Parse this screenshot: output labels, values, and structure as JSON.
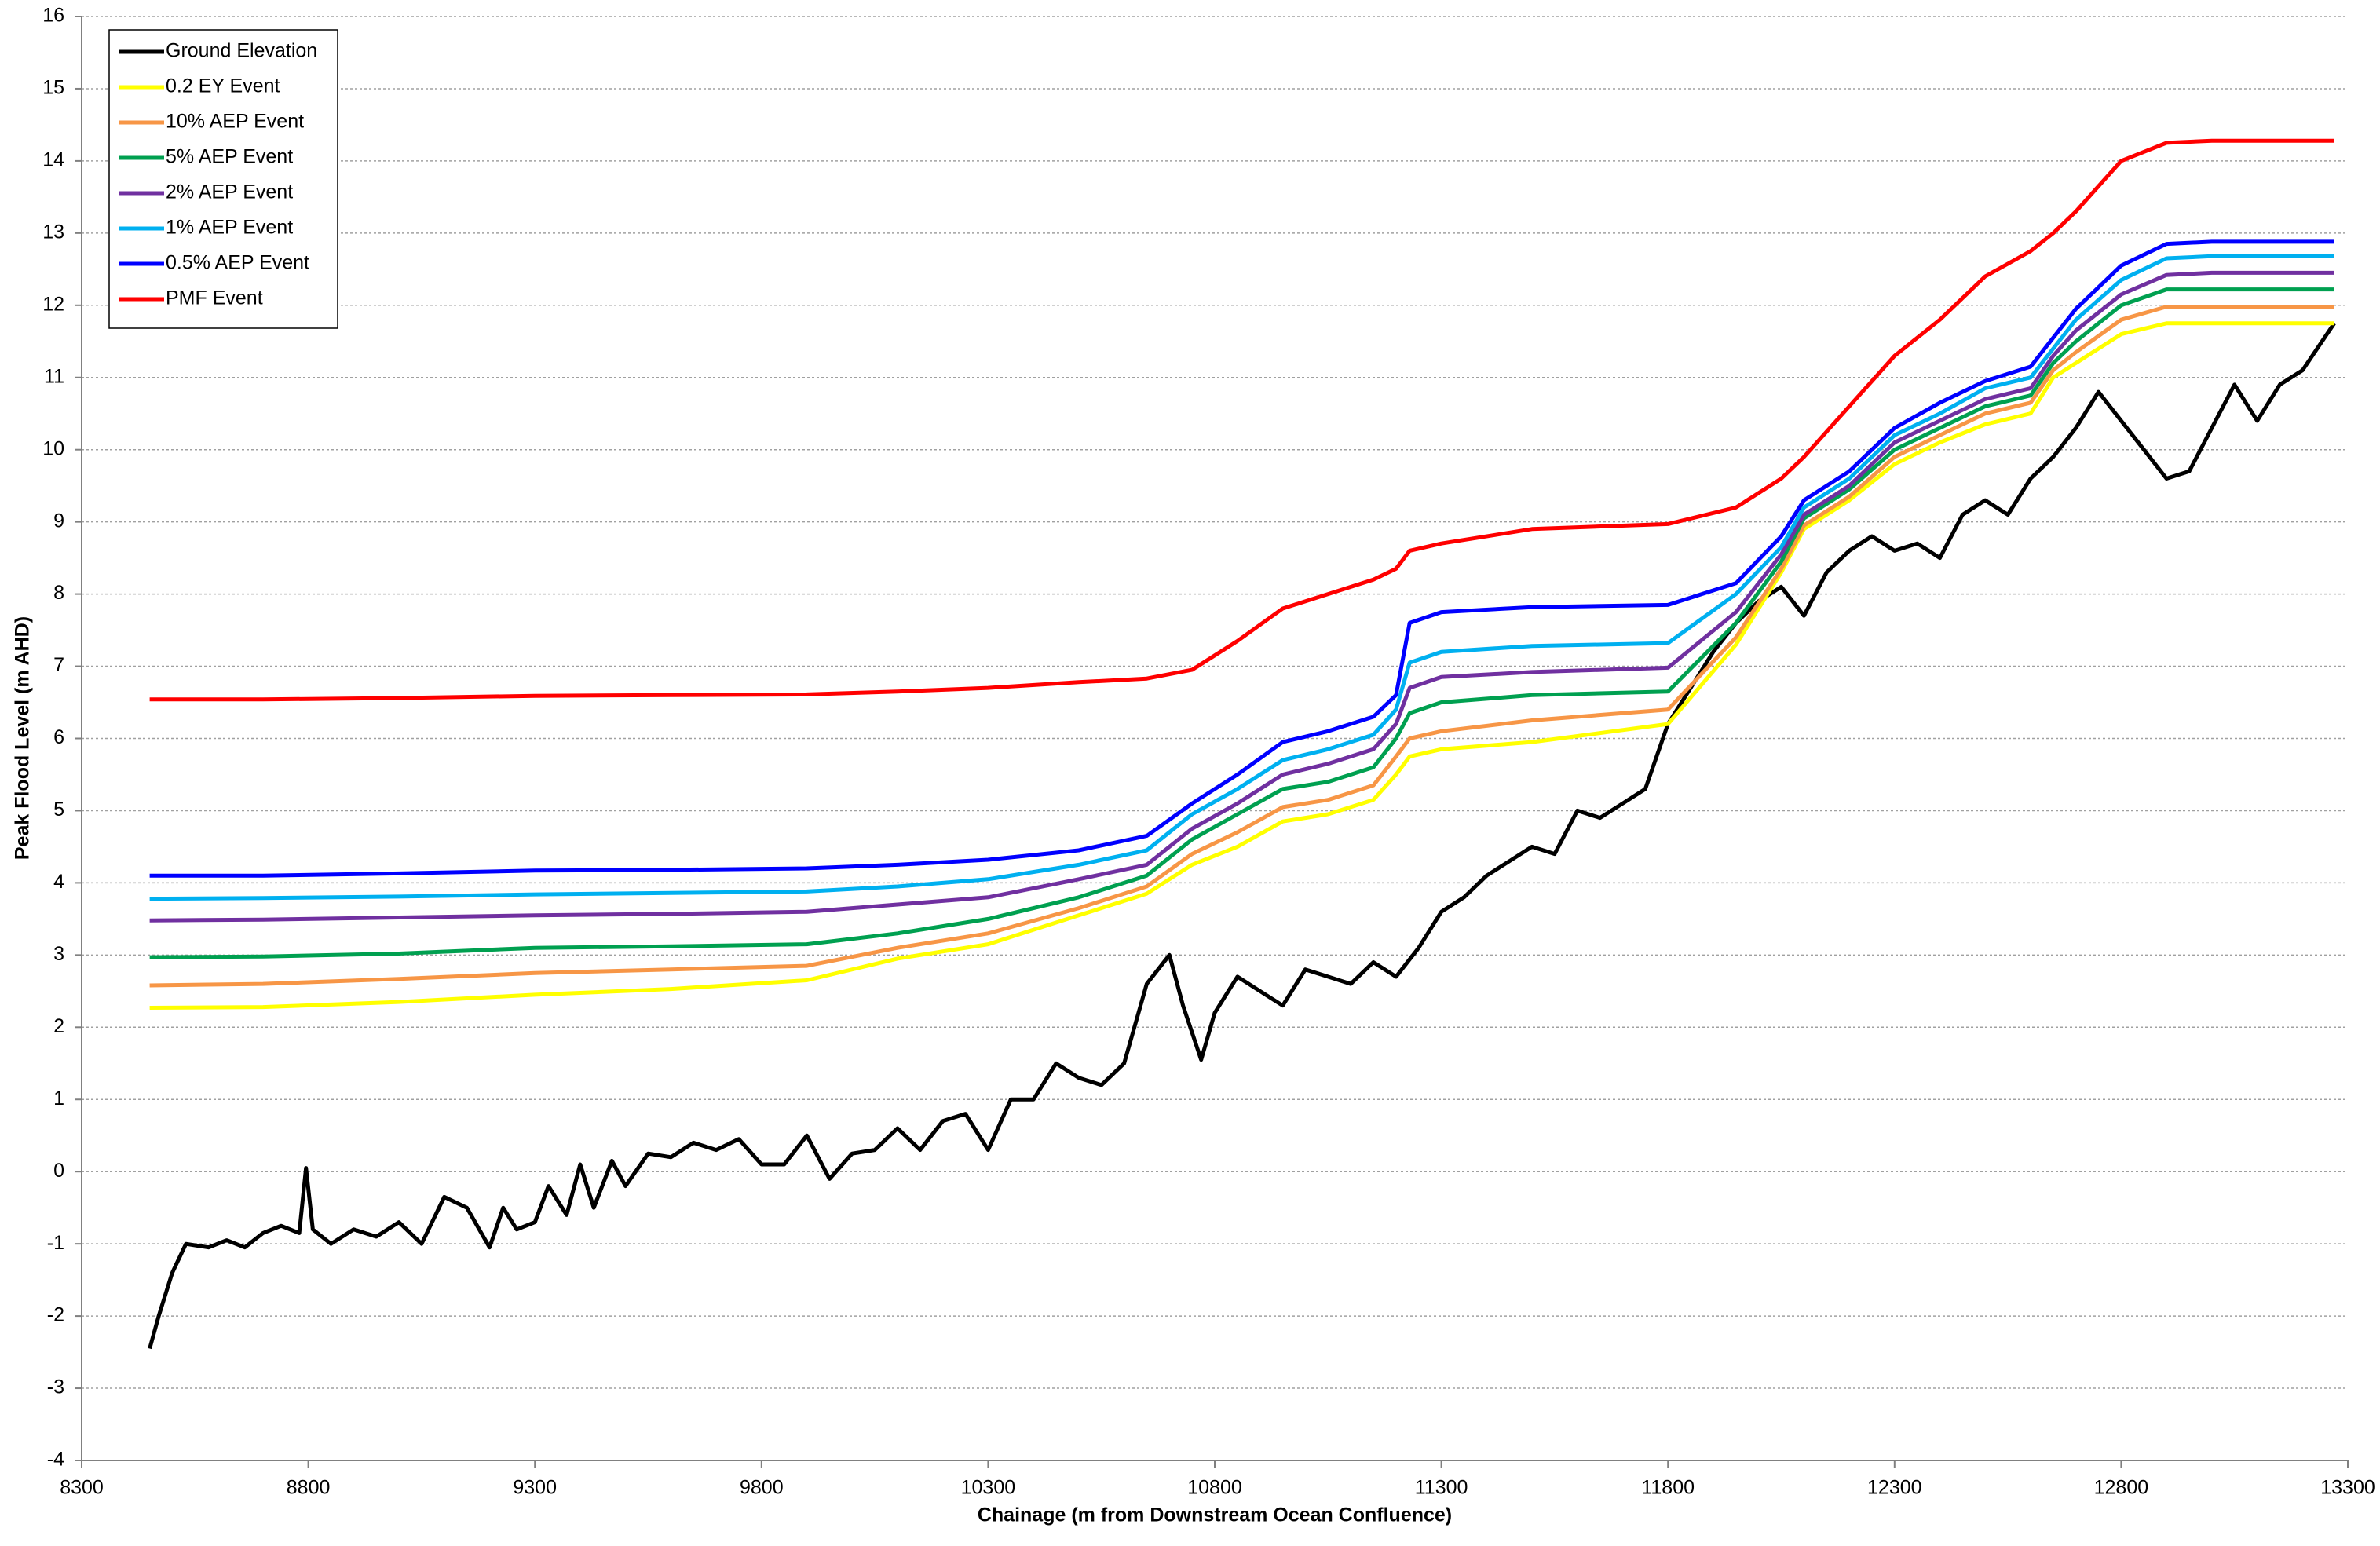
{
  "chart_data": {
    "type": "line",
    "x_label": "Chainage (m from Downstream Ocean Confluence)",
    "y_label": "Peak Flood Level (m AHD)",
    "xlim": [
      8300,
      13300
    ],
    "xticks": [
      8300,
      8800,
      9300,
      9800,
      10300,
      10800,
      11300,
      11800,
      12300,
      12800,
      13300
    ],
    "ylim": [
      -4,
      16
    ],
    "yticks": [
      -4,
      -3,
      -2,
      -1,
      0,
      1,
      2,
      3,
      4,
      5,
      6,
      7,
      8,
      9,
      10,
      11,
      12,
      13,
      14,
      15,
      16
    ],
    "grid": true,
    "legend": "top-left",
    "series": [
      {
        "name": "Ground Elevation",
        "color": "#000000",
        "x": [
          8450,
          8470,
          8500,
          8530,
          8580,
          8620,
          8660,
          8700,
          8740,
          8780,
          8795,
          8810,
          8850,
          8900,
          8950,
          9000,
          9050,
          9100,
          9150,
          9200,
          9230,
          9260,
          9300,
          9330,
          9370,
          9400,
          9430,
          9470,
          9500,
          9550,
          9600,
          9650,
          9700,
          9750,
          9800,
          9850,
          9900,
          9950,
          10000,
          10050,
          10100,
          10150,
          10200,
          10250,
          10300,
          10350,
          10400,
          10450,
          10500,
          10550,
          10600,
          10650,
          10700,
          10730,
          10770,
          10800,
          10850,
          10900,
          10950,
          11000,
          11050,
          11100,
          11150,
          11200,
          11250,
          11300,
          11350,
          11400,
          11450,
          11500,
          11550,
          11600,
          11650,
          11700,
          11750,
          11800,
          11850,
          11900,
          11950,
          12000,
          12050,
          12100,
          12150,
          12200,
          12250,
          12300,
          12350,
          12400,
          12450,
          12500,
          12550,
          12600,
          12650,
          12700,
          12750,
          12800,
          12850,
          12900,
          12950,
          13000,
          13050,
          13100,
          13150,
          13200,
          13270
        ],
        "values": [
          -2.45,
          -2.0,
          -1.4,
          -1.0,
          -1.05,
          -0.95,
          -1.05,
          -0.85,
          -0.75,
          -0.85,
          0.05,
          -0.8,
          -1.0,
          -0.8,
          -0.9,
          -0.7,
          -1.0,
          -0.35,
          -0.5,
          -1.05,
          -0.5,
          -0.8,
          -0.7,
          -0.2,
          -0.6,
          0.1,
          -0.5,
          0.15,
          -0.2,
          0.25,
          0.2,
          0.4,
          0.3,
          0.45,
          0.1,
          0.1,
          0.5,
          -0.1,
          0.25,
          0.3,
          0.6,
          0.3,
          0.7,
          0.8,
          0.3,
          1.0,
          1.0,
          1.5,
          1.3,
          1.2,
          1.5,
          2.6,
          3.0,
          2.3,
          1.55,
          2.2,
          2.7,
          2.5,
          2.3,
          2.8,
          2.7,
          2.6,
          2.9,
          2.7,
          3.1,
          3.6,
          3.8,
          4.1,
          4.3,
          4.5,
          4.4,
          5.0,
          4.9,
          5.1,
          5.3,
          6.2,
          6.7,
          7.2,
          7.6,
          7.9,
          8.1,
          7.7,
          8.3,
          8.6,
          8.8,
          8.6,
          8.7,
          8.5,
          9.1,
          9.3,
          9.1,
          9.6,
          9.9,
          10.3,
          10.8,
          10.4,
          10.0,
          9.6,
          9.7,
          10.3,
          10.9,
          10.4,
          10.9,
          11.1,
          11.75
        ]
      },
      {
        "name": "0.2 EY Event",
        "color": "#ffff00",
        "x": [
          8450,
          8700,
          9000,
          9300,
          9600,
          9900,
          10100,
          10300,
          10500,
          10650,
          10750,
          10850,
          10950,
          11050,
          11150,
          11200,
          11230,
          11300,
          11500,
          11800,
          11950,
          12050,
          12100,
          12200,
          12300,
          12400,
          12500,
          12600,
          12650,
          12700,
          12800,
          12900,
          13000,
          13100,
          13270
        ],
        "values": [
          2.27,
          2.28,
          2.35,
          2.45,
          2.53,
          2.65,
          2.95,
          3.15,
          3.55,
          3.85,
          4.25,
          4.5,
          4.85,
          4.95,
          5.15,
          5.5,
          5.75,
          5.85,
          5.95,
          6.2,
          7.3,
          8.3,
          8.9,
          9.3,
          9.8,
          10.1,
          10.35,
          10.5,
          11.0,
          11.2,
          11.6,
          11.75,
          11.75,
          11.75,
          11.75
        ]
      },
      {
        "name": "10% AEP Event",
        "color": "#f79646",
        "x": [
          8450,
          8700,
          9000,
          9300,
          9600,
          9900,
          10100,
          10300,
          10500,
          10650,
          10750,
          10850,
          10950,
          11050,
          11150,
          11200,
          11230,
          11300,
          11500,
          11800,
          11950,
          12050,
          12100,
          12200,
          12300,
          12400,
          12500,
          12600,
          12650,
          12700,
          12800,
          12900,
          13000,
          13100,
          13270
        ],
        "values": [
          2.58,
          2.6,
          2.67,
          2.75,
          2.8,
          2.85,
          3.1,
          3.3,
          3.65,
          3.95,
          4.4,
          4.7,
          5.05,
          5.15,
          5.35,
          5.75,
          6.0,
          6.1,
          6.25,
          6.4,
          7.4,
          8.35,
          8.95,
          9.35,
          9.9,
          10.2,
          10.5,
          10.65,
          11.1,
          11.35,
          11.8,
          11.98,
          11.98,
          11.98,
          11.98
        ]
      },
      {
        "name": "5% AEP Event",
        "color": "#00a050",
        "x": [
          8450,
          8700,
          9000,
          9300,
          9600,
          9900,
          10100,
          10300,
          10500,
          10650,
          10750,
          10850,
          10950,
          11050,
          11150,
          11200,
          11230,
          11300,
          11500,
          11800,
          11950,
          12050,
          12100,
          12200,
          12300,
          12400,
          12500,
          12600,
          12650,
          12700,
          12800,
          12900,
          13000,
          13100,
          13270
        ],
        "values": [
          2.97,
          2.98,
          3.02,
          3.1,
          3.12,
          3.15,
          3.3,
          3.5,
          3.8,
          4.1,
          4.6,
          4.95,
          5.3,
          5.4,
          5.6,
          6.0,
          6.35,
          6.5,
          6.6,
          6.65,
          7.6,
          8.45,
          9.05,
          9.45,
          10.0,
          10.3,
          10.6,
          10.75,
          11.2,
          11.5,
          12.0,
          12.22,
          12.22,
          12.22,
          12.22
        ]
      },
      {
        "name": "2% AEP Event",
        "color": "#7030a0",
        "x": [
          8450,
          8700,
          9000,
          9300,
          9600,
          9900,
          10100,
          10300,
          10500,
          10650,
          10750,
          10850,
          10950,
          11050,
          11150,
          11200,
          11230,
          11300,
          11500,
          11800,
          11950,
          12050,
          12100,
          12200,
          12300,
          12400,
          12500,
          12600,
          12650,
          12700,
          12800,
          12900,
          13000,
          13100,
          13270
        ],
        "values": [
          3.48,
          3.49,
          3.52,
          3.55,
          3.57,
          3.6,
          3.7,
          3.8,
          4.05,
          4.25,
          4.75,
          5.1,
          5.5,
          5.65,
          5.85,
          6.2,
          6.7,
          6.85,
          6.92,
          6.98,
          7.75,
          8.55,
          9.1,
          9.5,
          10.1,
          10.4,
          10.7,
          10.85,
          11.3,
          11.65,
          12.15,
          12.42,
          12.45,
          12.45,
          12.45
        ]
      },
      {
        "name": "1% AEP Event",
        "color": "#00b0f0",
        "x": [
          8450,
          8700,
          9000,
          9300,
          9600,
          9900,
          10100,
          10300,
          10500,
          10650,
          10750,
          10850,
          10950,
          11050,
          11150,
          11200,
          11230,
          11300,
          11500,
          11800,
          11950,
          12050,
          12100,
          12200,
          12300,
          12400,
          12500,
          12600,
          12650,
          12700,
          12800,
          12900,
          13000,
          13100,
          13270
        ],
        "values": [
          3.78,
          3.79,
          3.81,
          3.84,
          3.86,
          3.88,
          3.95,
          4.05,
          4.25,
          4.45,
          4.95,
          5.3,
          5.7,
          5.85,
          6.05,
          6.4,
          7.05,
          7.2,
          7.28,
          7.32,
          8.0,
          8.65,
          9.2,
          9.6,
          10.2,
          10.5,
          10.85,
          11.0,
          11.4,
          11.8,
          12.35,
          12.65,
          12.68,
          12.68,
          12.68
        ]
      },
      {
        "name": "0.5% AEP Event",
        "color": "#0000ff",
        "x": [
          8450,
          8700,
          9000,
          9300,
          9600,
          9900,
          10100,
          10300,
          10500,
          10650,
          10750,
          10850,
          10950,
          11050,
          11150,
          11200,
          11230,
          11300,
          11500,
          11800,
          11950,
          12050,
          12100,
          12200,
          12300,
          12400,
          12500,
          12600,
          12650,
          12700,
          12800,
          12900,
          13000,
          13100,
          13270
        ],
        "values": [
          4.1,
          4.1,
          4.13,
          4.17,
          4.18,
          4.2,
          4.25,
          4.32,
          4.45,
          4.65,
          5.1,
          5.5,
          5.95,
          6.1,
          6.3,
          6.6,
          7.6,
          7.75,
          7.82,
          7.85,
          8.15,
          8.8,
          9.3,
          9.7,
          10.3,
          10.65,
          10.95,
          11.15,
          11.55,
          11.95,
          12.55,
          12.85,
          12.88,
          12.88,
          12.88
        ]
      },
      {
        "name": "PMF Event",
        "color": "#ff0000",
        "x": [
          8450,
          8700,
          9000,
          9300,
          9600,
          9900,
          10100,
          10300,
          10500,
          10650,
          10750,
          10850,
          10950,
          11050,
          11150,
          11200,
          11230,
          11300,
          11500,
          11800,
          11950,
          12050,
          12100,
          12200,
          12300,
          12400,
          12500,
          12600,
          12650,
          12700,
          12800,
          12900,
          13000,
          13100,
          13270
        ],
        "values": [
          6.54,
          6.54,
          6.56,
          6.59,
          6.6,
          6.61,
          6.65,
          6.7,
          6.78,
          6.83,
          6.95,
          7.35,
          7.8,
          8.0,
          8.2,
          8.35,
          8.6,
          8.7,
          8.9,
          8.97,
          9.2,
          9.6,
          9.9,
          10.6,
          11.3,
          11.8,
          12.4,
          12.75,
          13.0,
          13.3,
          14.0,
          14.25,
          14.28,
          14.28,
          14.28
        ]
      }
    ]
  }
}
